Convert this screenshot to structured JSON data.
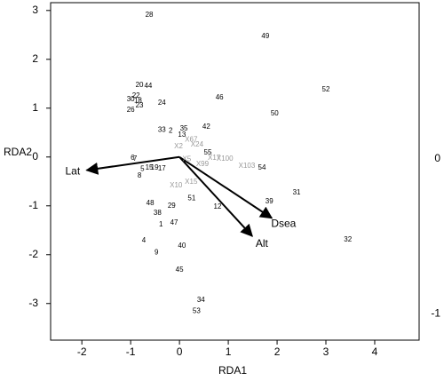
{
  "chart_data": {
    "type": "biplot",
    "x_label": "RDA1",
    "y_label": "RDA2",
    "xlim": [
      -2.64,
      4.91
    ],
    "ylim": [
      -3.75,
      3.16
    ],
    "xticks": [
      -2,
      -1,
      0,
      1,
      2,
      3,
      4
    ],
    "yticks": [
      -3,
      -2,
      -1,
      0,
      1,
      2,
      3
    ],
    "y2lim": [
      -1.17,
      1.01
    ],
    "y2ticks": [
      -1,
      0
    ],
    "sites": {
      "color": "#000000",
      "labels": [
        "28",
        "49",
        "20",
        "44",
        "52",
        "22",
        "46",
        "24",
        "30",
        "18",
        "26",
        "23",
        "50",
        "42",
        "33",
        "2",
        "35",
        "13",
        "55",
        "6",
        "7",
        "5",
        "15",
        "8",
        "17",
        "19",
        "54",
        "31",
        "39",
        "48",
        "29",
        "51",
        "12",
        "38",
        "1",
        "47",
        "4",
        "40",
        "9",
        "45",
        "34",
        "53",
        "32"
      ],
      "x": [
        -0.62,
        1.76,
        -0.82,
        -0.64,
        3.0,
        -0.89,
        0.82,
        -0.36,
        -1.0,
        -0.85,
        -1.0,
        -0.82,
        1.95,
        0.55,
        -0.36,
        -0.18,
        0.09,
        0.05,
        0.58,
        -0.96,
        -0.91,
        -0.76,
        -0.62,
        -0.82,
        -0.36,
        -0.51,
        1.69,
        2.4,
        1.84,
        -0.6,
        -0.16,
        0.25,
        0.78,
        -0.45,
        -0.38,
        -0.11,
        -0.73,
        0.05,
        -0.47,
        0.0,
        0.44,
        0.35,
        3.45
      ],
      "y": [
        2.91,
        2.47,
        1.47,
        1.45,
        1.38,
        1.25,
        1.22,
        1.11,
        1.18,
        1.15,
        0.96,
        1.05,
        0.89,
        0.62,
        0.55,
        0.53,
        0.58,
        0.45,
        0.09,
        -0.02,
        -0.04,
        -0.25,
        -0.22,
        -0.38,
        -0.24,
        -0.22,
        -0.22,
        -0.73,
        -0.91,
        -0.95,
        -1.0,
        -0.85,
        -1.02,
        -1.15,
        -1.38,
        -1.35,
        -1.71,
        -1.82,
        -1.96,
        -2.31,
        -2.93,
        -3.16,
        -1.69
      ]
    },
    "species": {
      "color": "#999999",
      "labels": [
        "X67",
        "X24",
        "X2",
        "X100",
        "X17",
        "X99",
        "X103",
        "X10",
        "X15",
        "X5"
      ],
      "x": [
        0.24,
        0.36,
        -0.02,
        0.93,
        0.71,
        0.47,
        1.38,
        -0.07,
        0.24,
        0.15
      ],
      "y": [
        0.35,
        0.25,
        0.22,
        -0.04,
        -0.02,
        -0.15,
        -0.18,
        -0.58,
        -0.51,
        -0.05
      ]
    },
    "arrows": {
      "color": "#000000",
      "names": [
        "Lat",
        "Dsea",
        "Alt"
      ],
      "x": [
        -1.9,
        1.89,
        1.49
      ],
      "y": [
        -0.27,
        -1.25,
        -1.62
      ]
    }
  }
}
